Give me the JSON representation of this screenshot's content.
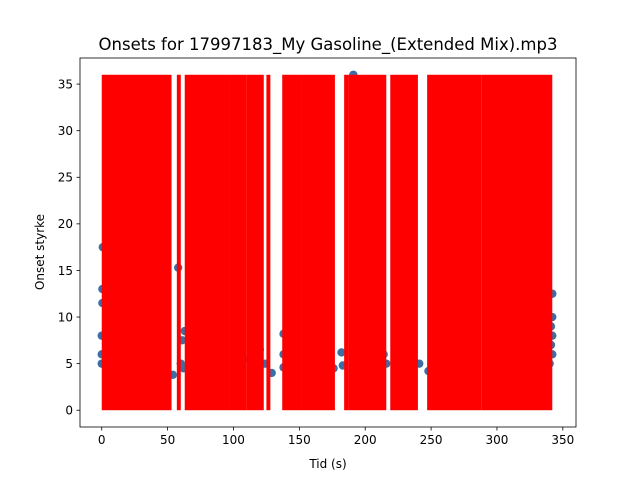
{
  "chart_data": {
    "type": "scatter",
    "title": "Onsets for 17997183_My Gasoline_(Extended Mix).mp3",
    "xlabel": "Tid (s)",
    "ylabel": "Onset styrke",
    "xlim": [
      -16.5,
      360
    ],
    "ylim": [
      -1.8,
      37.8
    ],
    "x_ticks": [
      0,
      50,
      100,
      150,
      200,
      250,
      300,
      350
    ],
    "y_ticks": [
      0,
      5,
      10,
      15,
      20,
      25,
      30,
      35
    ],
    "grid": false,
    "legend": "none",
    "colors": {
      "points": "#3a6ea5",
      "onset_lines": "#ff0000"
    },
    "onset_line_range": [
      0,
      36
    ],
    "onset_line_spans": [
      [
        0,
        53
      ],
      [
        57,
        60
      ],
      [
        63,
        97
      ],
      [
        97,
        110
      ],
      [
        110,
        123
      ],
      [
        125,
        128
      ],
      [
        137,
        152
      ],
      [
        152,
        177
      ],
      [
        184,
        187
      ],
      [
        187,
        216
      ],
      [
        219,
        240
      ],
      [
        247,
        288
      ],
      [
        288,
        342
      ]
    ],
    "points": [
      [
        0,
        5.0
      ],
      [
        0,
        6.0
      ],
      [
        0,
        8.0
      ],
      [
        0.5,
        11.5
      ],
      [
        0.5,
        13.0
      ],
      [
        0.8,
        17.5
      ],
      [
        54,
        3.8
      ],
      [
        58,
        15.3
      ],
      [
        60,
        5.0
      ],
      [
        61,
        7.5
      ],
      [
        63,
        8.5
      ],
      [
        62,
        4.5
      ],
      [
        112,
        5.5
      ],
      [
        120,
        6.5
      ],
      [
        124,
        5.0
      ],
      [
        129,
        4.0
      ],
      [
        138,
        4.6
      ],
      [
        138,
        6.0
      ],
      [
        138,
        8.2
      ],
      [
        146,
        5.2
      ],
      [
        160,
        6.0
      ],
      [
        176,
        4.5
      ],
      [
        182,
        6.2
      ],
      [
        183,
        4.8
      ],
      [
        191,
        36.0
      ],
      [
        214,
        6.0
      ],
      [
        216,
        5.0
      ],
      [
        224,
        5.5
      ],
      [
        236,
        4.0
      ],
      [
        241,
        5.0
      ],
      [
        248,
        4.2
      ],
      [
        340,
        5.0
      ],
      [
        341,
        7.0
      ],
      [
        341,
        9.0
      ],
      [
        342,
        6.0
      ],
      [
        342,
        8.0
      ],
      [
        342,
        10.0
      ],
      [
        342,
        12.5
      ]
    ]
  }
}
